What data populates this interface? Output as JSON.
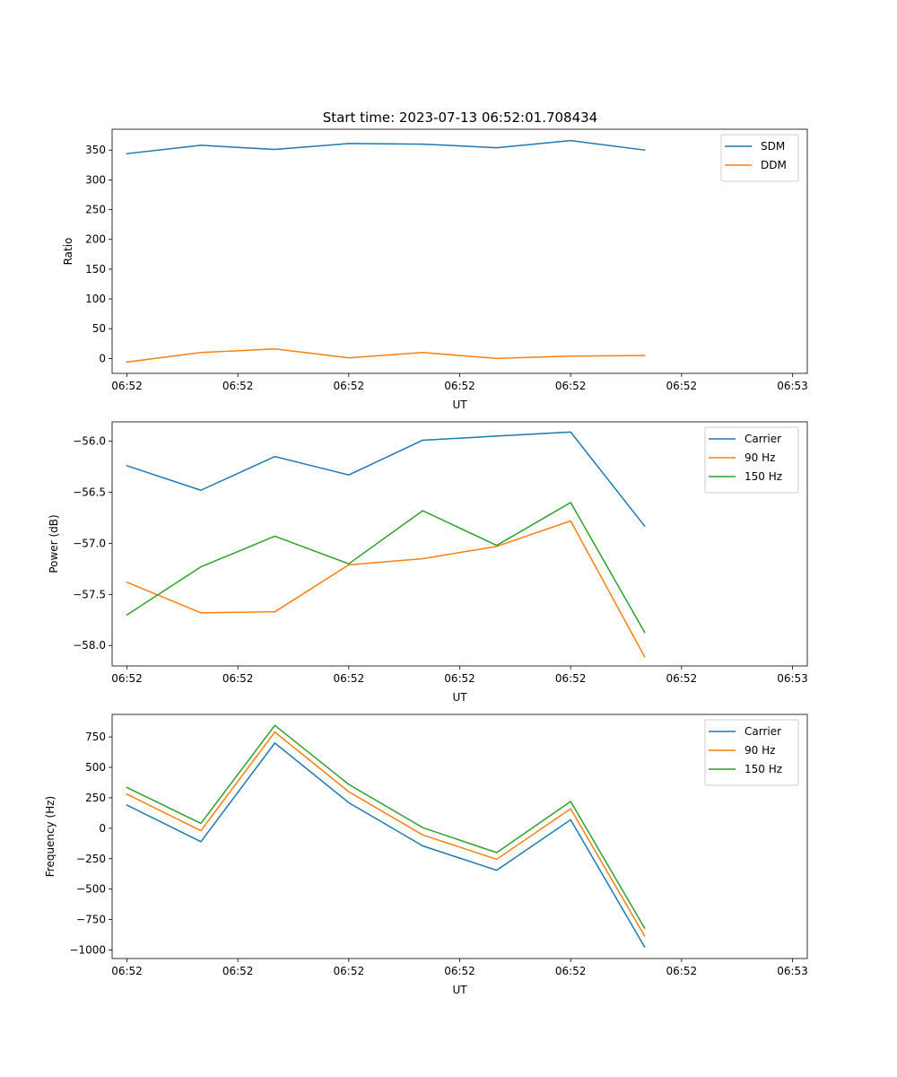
{
  "chart_data": [
    {
      "type": "line",
      "title": "Start time: 2023-07-13 06:52:01.708434",
      "xlabel": "UT",
      "ylabel": "Ratio",
      "x": [
        1,
        2,
        3,
        4,
        5,
        6,
        7,
        8
      ],
      "xlim": [
        0.8,
        10.2
      ],
      "xticks": [
        1,
        2.5,
        4,
        5.5,
        7,
        8.5,
        10
      ],
      "xtick_labels": [
        "06:52",
        "06:52",
        "06:52",
        "06:52",
        "06:52",
        "06:52",
        "06:53"
      ],
      "ylim": [
        -25,
        385
      ],
      "yticks": [
        0,
        50,
        100,
        150,
        200,
        250,
        300,
        350
      ],
      "ytick_labels": [
        "0",
        "50",
        "100",
        "150",
        "200",
        "250",
        "300",
        "350"
      ],
      "legend_position": "top-right",
      "series": [
        {
          "name": "SDM",
          "color": "#1f77b4",
          "values": [
            344,
            358,
            351,
            361,
            360,
            354,
            366,
            350
          ]
        },
        {
          "name": "DDM",
          "color": "#ff7f0e",
          "values": [
            -6,
            10,
            16,
            1,
            10,
            0,
            4,
            5
          ]
        }
      ]
    },
    {
      "type": "line",
      "title": "",
      "xlabel": "UT",
      "ylabel": "Power (dB)",
      "x": [
        1,
        2,
        3,
        4,
        5,
        6,
        7,
        8
      ],
      "xlim": [
        0.8,
        10.2
      ],
      "xticks": [
        1,
        2.5,
        4,
        5.5,
        7,
        8.5,
        10
      ],
      "xtick_labels": [
        "06:52",
        "06:52",
        "06:52",
        "06:52",
        "06:52",
        "06:52",
        "06:53"
      ],
      "ylim": [
        -58.2,
        -55.81
      ],
      "yticks": [
        -58.0,
        -57.5,
        -57.0,
        -56.5,
        -56.0
      ],
      "ytick_labels": [
        "−58.0",
        "−57.5",
        "−57.0",
        "−56.5",
        "−56.0"
      ],
      "legend_position": "top-right",
      "series": [
        {
          "name": "Carrier",
          "color": "#1f77b4",
          "values": [
            -56.24,
            -56.48,
            -56.15,
            -56.33,
            -55.99,
            -55.95,
            -55.91,
            -56.83
          ]
        },
        {
          "name": "90 Hz",
          "color": "#ff7f0e",
          "values": [
            -57.38,
            -57.68,
            -57.67,
            -57.21,
            -57.15,
            -57.03,
            -56.78,
            -58.11
          ]
        },
        {
          "name": "150 Hz",
          "color": "#2ca02c",
          "values": [
            -57.7,
            -57.23,
            -56.93,
            -57.2,
            -56.68,
            -57.02,
            -56.6,
            -57.87
          ]
        }
      ]
    },
    {
      "type": "line",
      "title": "",
      "xlabel": "UT",
      "ylabel": "Frequency (Hz)",
      "x": [
        1,
        2,
        3,
        4,
        5,
        6,
        7,
        8
      ],
      "xlim": [
        0.8,
        10.2
      ],
      "xticks": [
        1,
        2.5,
        4,
        5.5,
        7,
        8.5,
        10
      ],
      "xtick_labels": [
        "06:52",
        "06:52",
        "06:52",
        "06:52",
        "06:52",
        "06:52",
        "06:53"
      ],
      "ylim": [
        -1070,
        935
      ],
      "yticks": [
        -1000,
        -750,
        -500,
        -250,
        0,
        250,
        500,
        750
      ],
      "ytick_labels": [
        "−1000",
        "−750",
        "−500",
        "−250",
        "0",
        "250",
        "500",
        "750"
      ],
      "legend_position": "top-right",
      "series": [
        {
          "name": "Carrier",
          "color": "#1f77b4",
          "values": [
            190,
            -110,
            700,
            210,
            -145,
            -345,
            70,
            -975
          ]
        },
        {
          "name": "90 Hz",
          "color": "#ff7f0e",
          "values": [
            280,
            -20,
            790,
            300,
            -55,
            -255,
            160,
            -885
          ]
        },
        {
          "name": "150 Hz",
          "color": "#2ca02c",
          "values": [
            335,
            40,
            845,
            360,
            5,
            -200,
            220,
            -820
          ]
        }
      ]
    }
  ]
}
